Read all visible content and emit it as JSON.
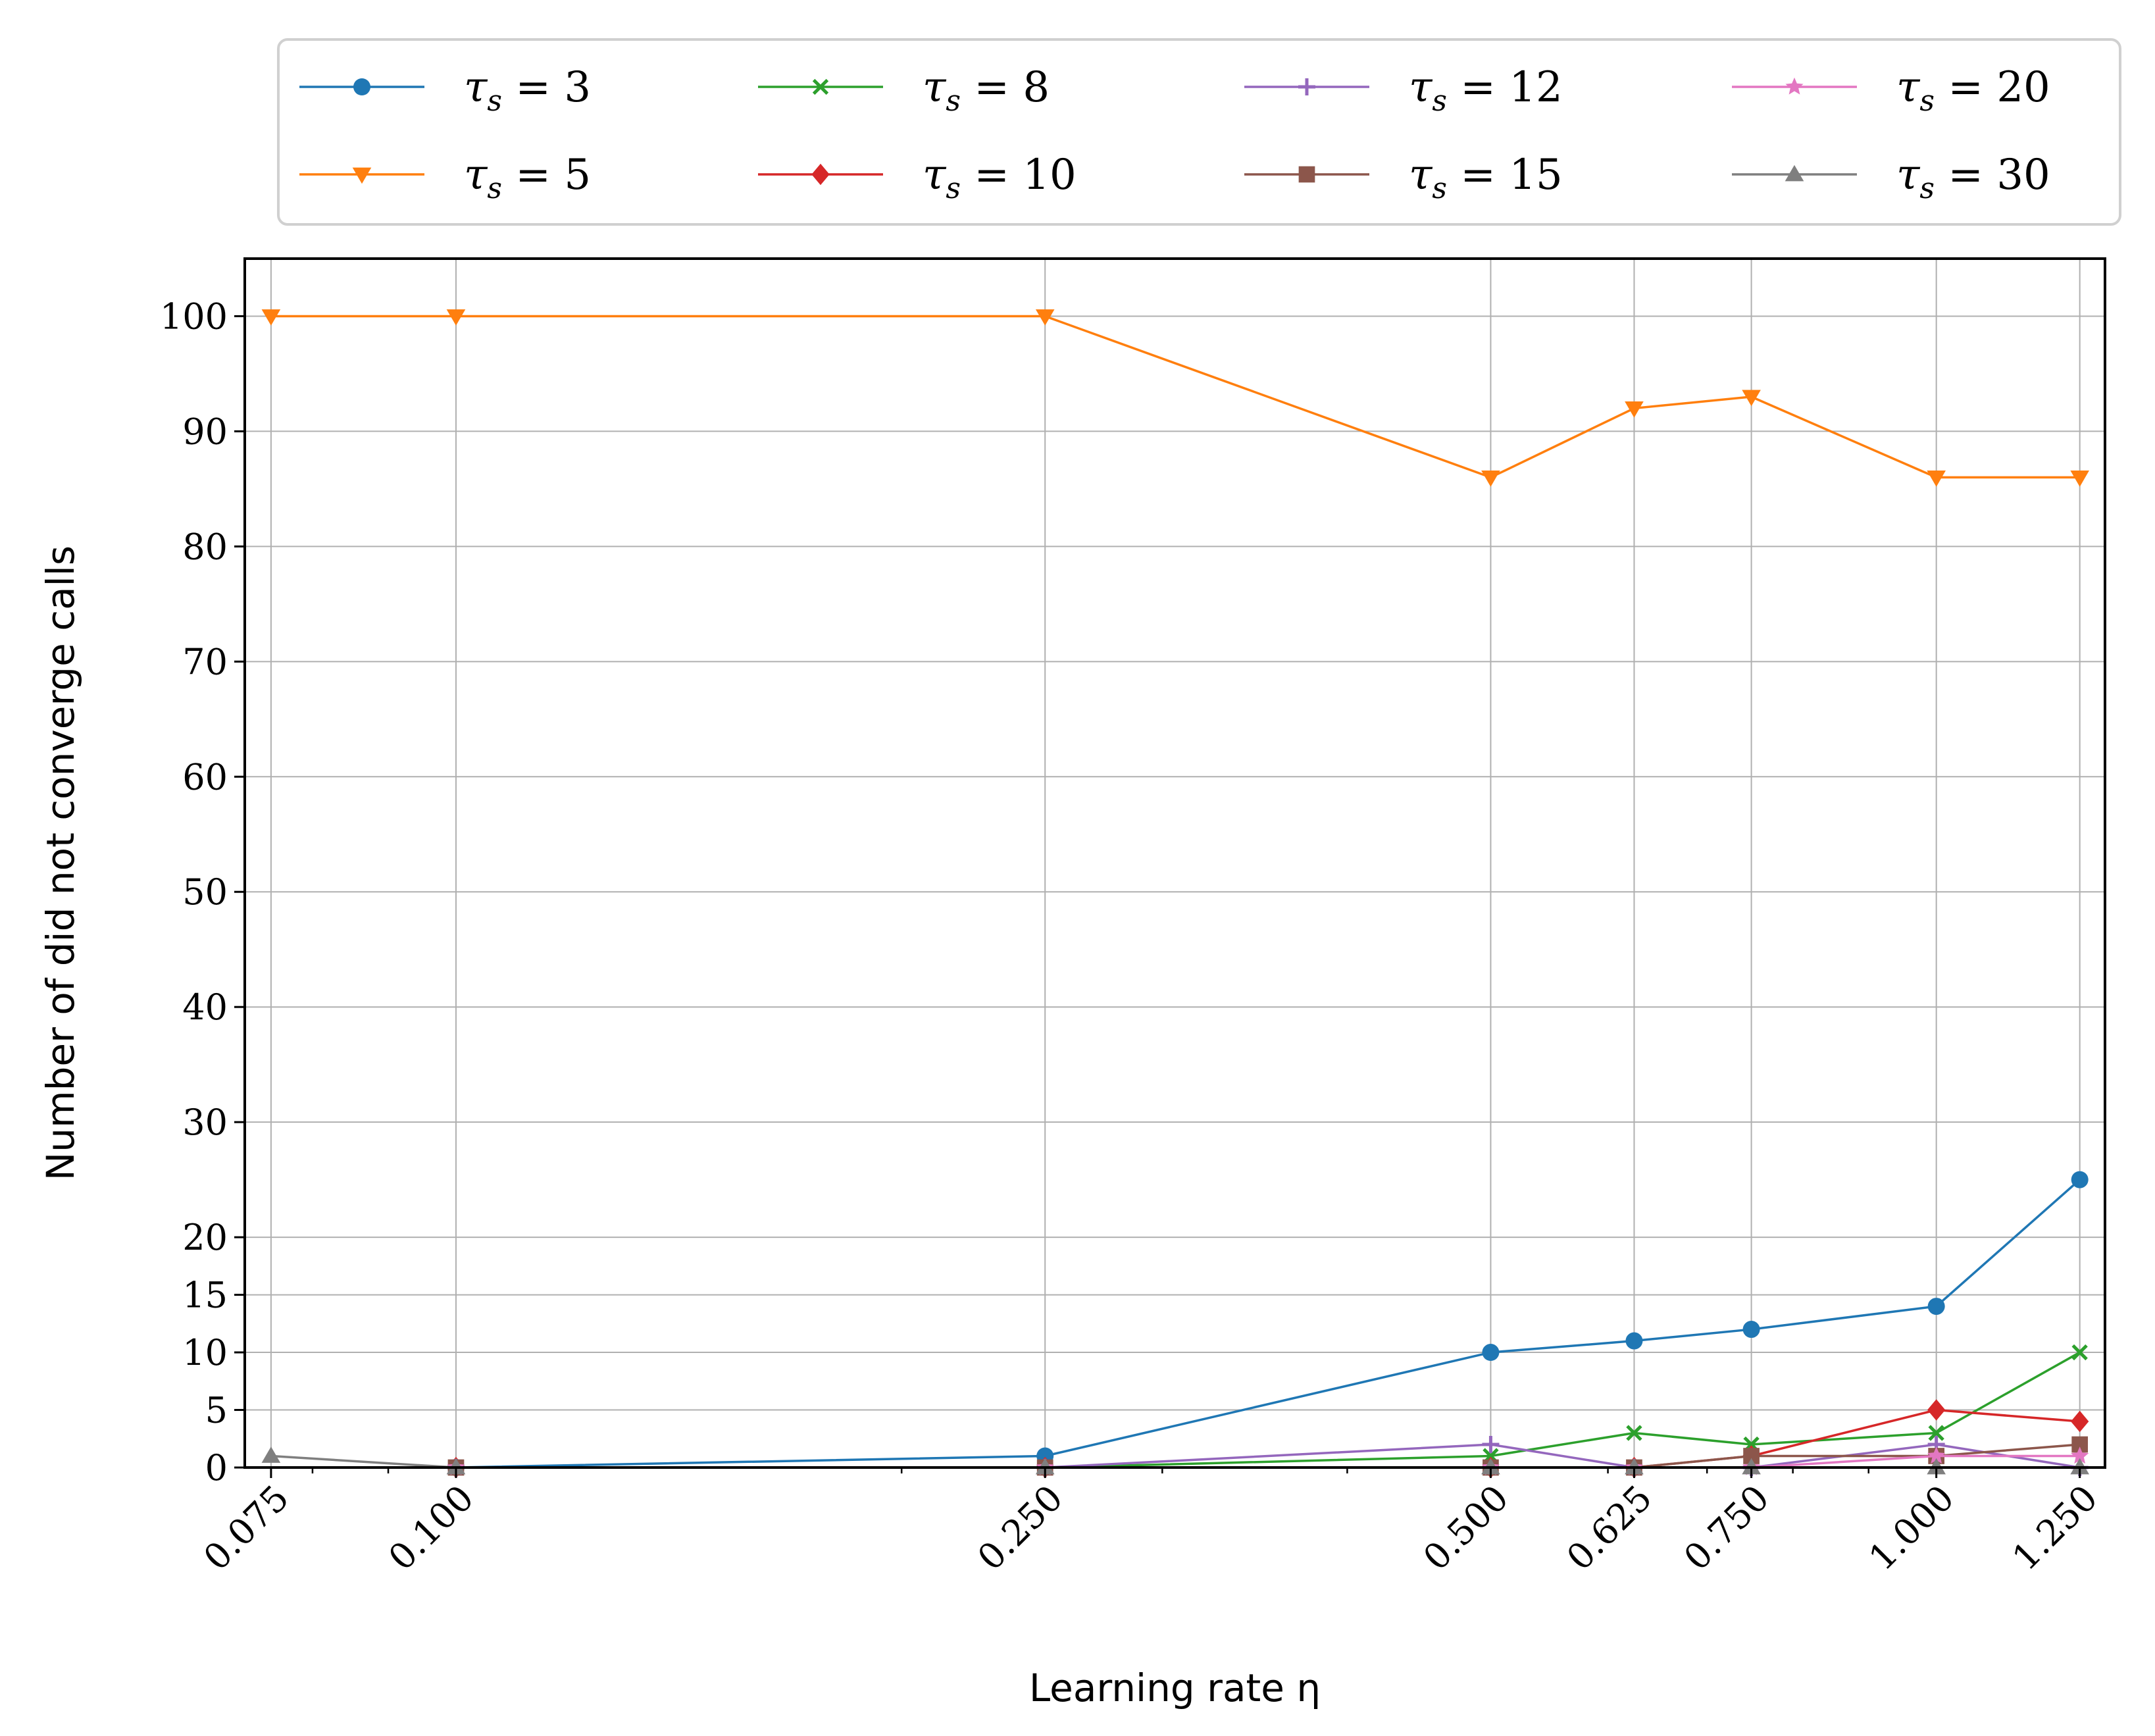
{
  "chart_data": {
    "type": "line",
    "xlabel": "Learning rate η",
    "ylabel": "Number of did not converge calls",
    "x_scale": "log",
    "x_ticks": [
      "0.075",
      "0.100",
      "0.250",
      "0.500",
      "0.625",
      "0.750",
      "1.000",
      "1.250"
    ],
    "y_ticks": [
      "0",
      "5",
      "10",
      "15",
      "20",
      "30",
      "40",
      "50",
      "60",
      "70",
      "80",
      "90",
      "100"
    ],
    "xlim": [
      0.072,
      1.3
    ],
    "ylim": [
      0,
      105
    ],
    "grid": true,
    "legend_position": "top, above plot, 4 columns",
    "x": [
      0.075,
      0.1,
      0.25,
      0.5,
      0.625,
      0.75,
      1.0,
      1.25
    ],
    "series": [
      {
        "name": "τ_s = 3",
        "color": "#1f77b4",
        "marker": "circle",
        "values": [
          null,
          0,
          1,
          10,
          11,
          12,
          14,
          25
        ]
      },
      {
        "name": "τ_s = 5",
        "color": "#ff7f0e",
        "marker": "triangle-down",
        "values": [
          100,
          100,
          100,
          86,
          92,
          93,
          86,
          86
        ]
      },
      {
        "name": "τ_s = 8",
        "color": "#2ca02c",
        "marker": "x",
        "values": [
          null,
          0,
          0,
          1,
          3,
          2,
          3,
          10
        ]
      },
      {
        "name": "τ_s = 10",
        "color": "#d62728",
        "marker": "diamond",
        "values": [
          null,
          0,
          0,
          0,
          0,
          1,
          5,
          4
        ]
      },
      {
        "name": "τ_s = 12",
        "color": "#9467bd",
        "marker": "plus",
        "values": [
          null,
          0,
          0,
          2,
          0,
          0,
          2,
          0
        ]
      },
      {
        "name": "τ_s = 15",
        "color": "#8c564b",
        "marker": "square",
        "values": [
          null,
          0,
          0,
          0,
          0,
          1,
          1,
          2
        ]
      },
      {
        "name": "τ_s = 20",
        "color": "#e377c2",
        "marker": "star",
        "values": [
          null,
          0,
          0,
          0,
          0,
          0,
          1,
          1
        ]
      },
      {
        "name": "τ_s = 30",
        "color": "#7f7f7f",
        "marker": "triangle-up",
        "values": [
          1,
          0,
          0,
          0,
          0,
          0,
          0,
          0
        ]
      }
    ]
  }
}
